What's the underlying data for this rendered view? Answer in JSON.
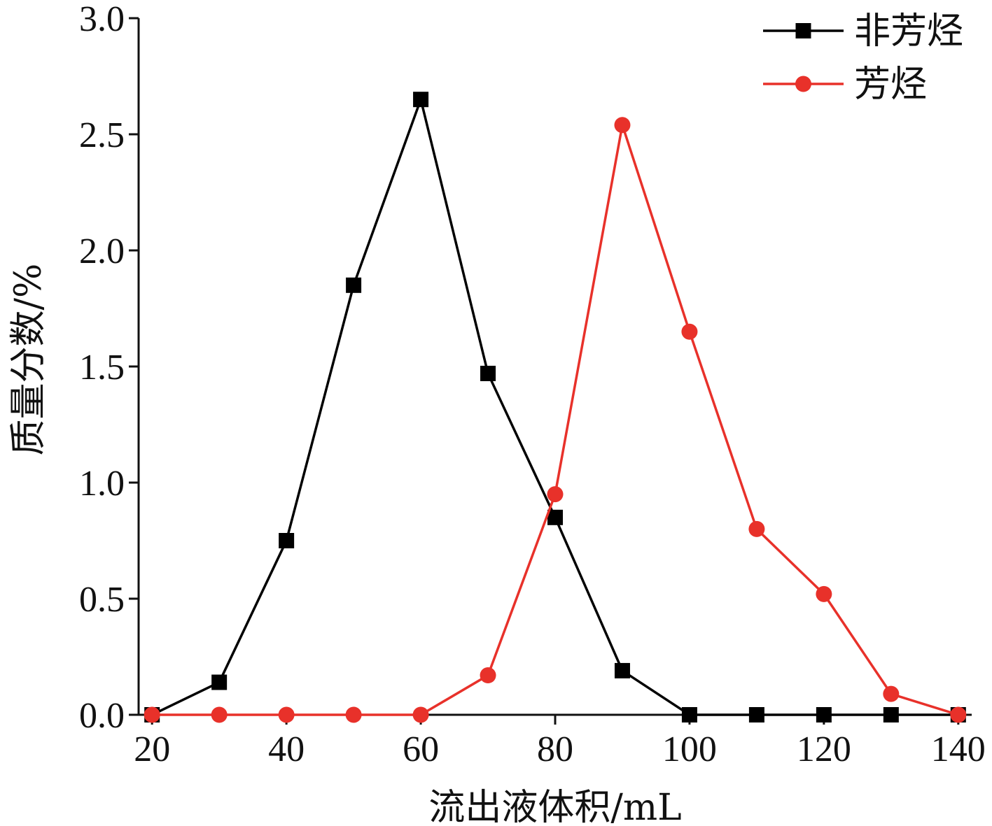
{
  "chart_data": {
    "type": "line",
    "title": "",
    "xlabel": "流出液体积/mL",
    "ylabel": "质量分数/%",
    "xlim": [
      18,
      142
    ],
    "ylim": [
      0,
      3.0
    ],
    "xticks": [
      20,
      40,
      60,
      80,
      100,
      120,
      140
    ],
    "xtick_labels": [
      "20",
      "40",
      "60",
      "80",
      "100",
      "120",
      "140"
    ],
    "yticks": [
      0.0,
      0.5,
      1.0,
      1.5,
      2.0,
      2.5,
      3.0
    ],
    "ytick_labels": [
      "0.0",
      "0.5",
      "1.0",
      "1.5",
      "2.0",
      "2.5",
      "3.0"
    ],
    "grid": false,
    "legend_position": "top-right",
    "x": [
      20,
      30,
      40,
      50,
      60,
      70,
      80,
      90,
      100,
      110,
      120,
      130,
      140
    ],
    "series": [
      {
        "name": "非芳烃",
        "color": "#000000",
        "marker": "square",
        "values": [
          0.0,
          0.14,
          0.75,
          1.85,
          2.65,
          1.47,
          0.85,
          0.19,
          0.0,
          0.0,
          0.0,
          0.0,
          0.0
        ]
      },
      {
        "name": "芳烃",
        "color": "#e8312a",
        "marker": "circle",
        "values": [
          0.0,
          0.0,
          0.0,
          0.0,
          0.0,
          0.17,
          0.95,
          2.54,
          1.65,
          0.8,
          0.52,
          0.09,
          0.0
        ]
      }
    ]
  }
}
